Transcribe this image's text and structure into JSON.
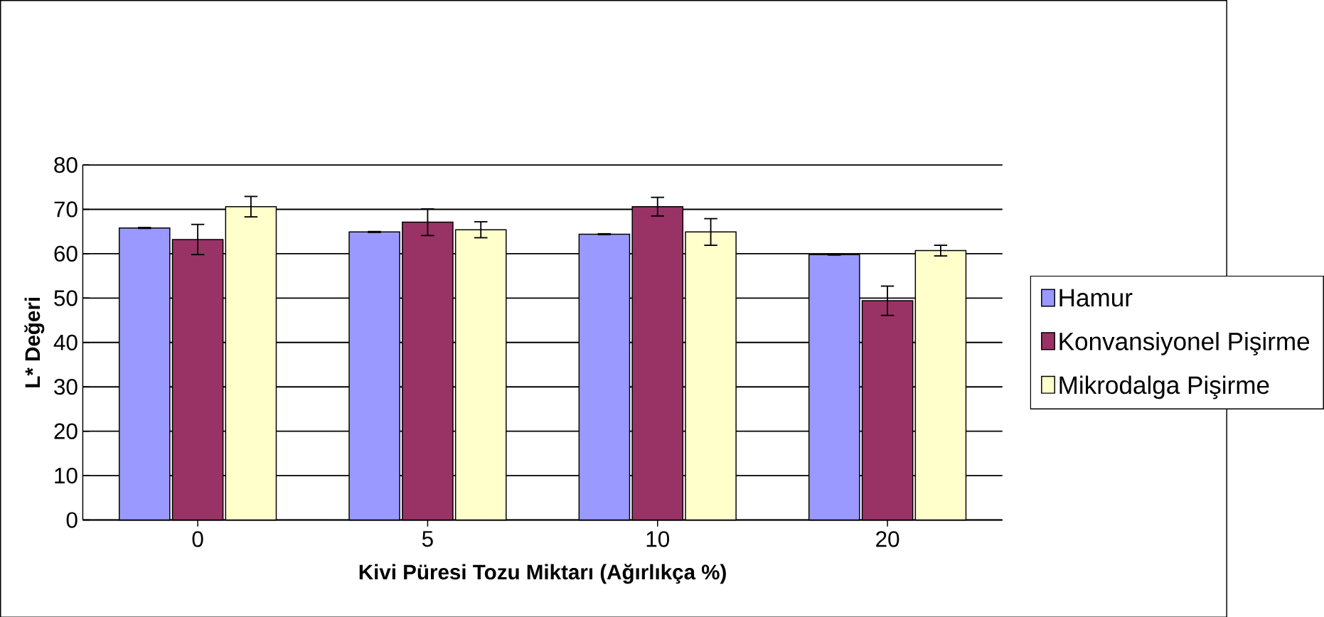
{
  "chart_data": {
    "type": "bar",
    "xlabel": "Kivi Püresi Tozu Miktarı (Ağırlıkça %)",
    "ylabel": "L* Değeri",
    "categories": [
      "0",
      "5",
      "10",
      "20"
    ],
    "series": [
      {
        "name": "Hamur",
        "color": "#9999ff",
        "values": [
          65.8,
          64.9,
          64.4,
          59.8
        ],
        "errors": [
          0.1,
          0.1,
          0.1,
          0.1
        ]
      },
      {
        "name": "Konvansiyonel Pişirme",
        "color": "#993366",
        "values": [
          63.2,
          67.1,
          70.6,
          49.4
        ],
        "errors": [
          3.4,
          3,
          2.1,
          3.3
        ]
      },
      {
        "name": "Mikrodalga Pişirme",
        "color": "#ffffcc",
        "values": [
          70.6,
          65.4,
          64.9,
          60.7
        ],
        "errors": [
          2.3,
          1.8,
          3,
          1.2
        ]
      }
    ],
    "ylim": [
      0,
      80
    ],
    "yticks": [
      0,
      10,
      20,
      30,
      40,
      50,
      60,
      70,
      80
    ],
    "grid": "y",
    "legend": "right"
  }
}
